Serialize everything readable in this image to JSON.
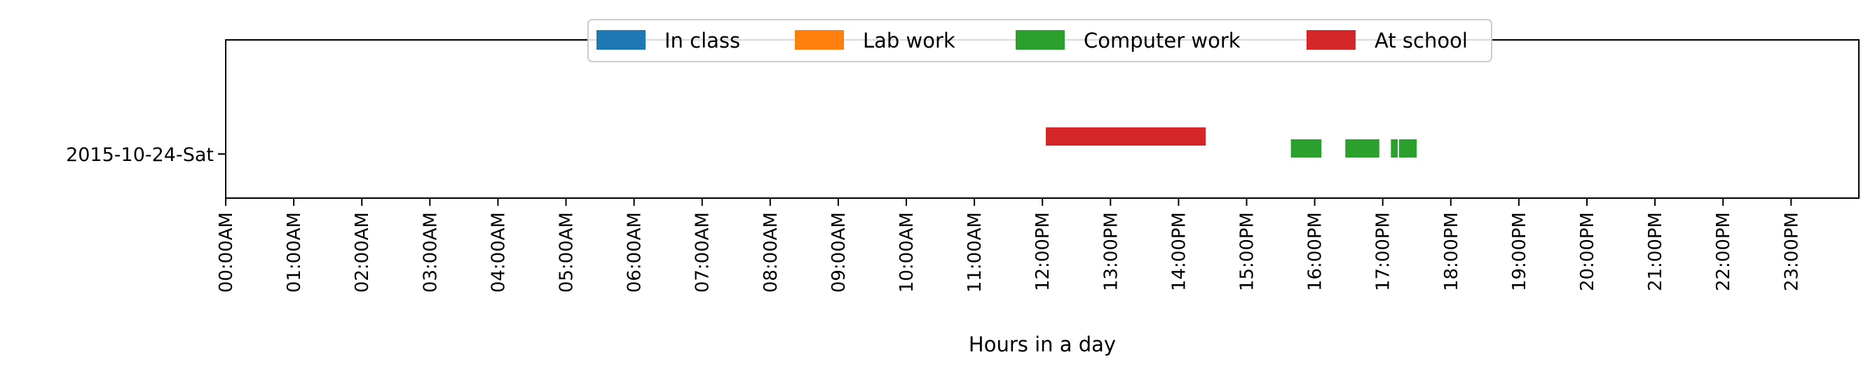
{
  "chart_data": {
    "type": "bar",
    "orientation": "horizontal",
    "xlabel": "Hours in a day",
    "ylabel": "",
    "xlim": [
      0,
      24
    ],
    "x_ticks": [
      0,
      1,
      2,
      3,
      4,
      5,
      6,
      7,
      8,
      9,
      10,
      11,
      12,
      13,
      14,
      15,
      16,
      17,
      18,
      19,
      20,
      21,
      22,
      23
    ],
    "x_tick_labels": [
      "00:00AM",
      "01:00AM",
      "02:00AM",
      "03:00AM",
      "04:00AM",
      "05:00AM",
      "06:00AM",
      "07:00AM",
      "08:00AM",
      "09:00AM",
      "10:00AM",
      "11:00AM",
      "12:00PM",
      "13:00PM",
      "14:00PM",
      "15:00PM",
      "16:00PM",
      "17:00PM",
      "18:00PM",
      "19:00PM",
      "20:00PM",
      "21:00PM",
      "22:00PM",
      "23:00PM"
    ],
    "categories": [
      "2015-10-24-Sat"
    ],
    "grid": false,
    "legend_position": "top-center",
    "series": [
      {
        "name": "In class",
        "color": "#1f77b4",
        "intervals": []
      },
      {
        "name": "Lab work",
        "color": "#ff7f0e",
        "intervals": []
      },
      {
        "name": "Computer work",
        "color": "#2ca02c",
        "intervals": [
          [
            15.65,
            16.1
          ],
          [
            16.45,
            16.95
          ],
          [
            17.12,
            17.22
          ],
          [
            17.24,
            17.5
          ]
        ]
      },
      {
        "name": "At school",
        "color": "#d62728",
        "intervals": [
          [
            12.05,
            14.4
          ]
        ]
      }
    ]
  }
}
